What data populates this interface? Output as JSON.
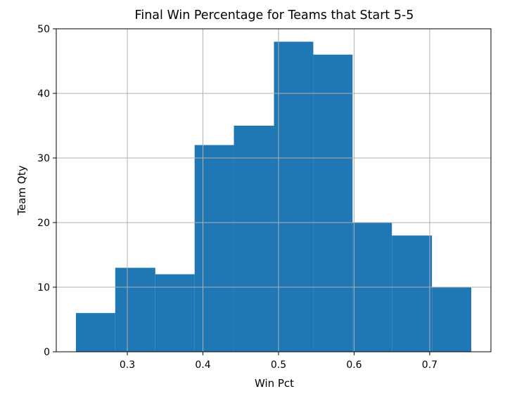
{
  "chart_data": {
    "type": "bar",
    "title": "Final Win Percentage for Teams that Start 5-5",
    "xlabel": "Win Pct",
    "ylabel": "Team Qty",
    "bins": [
      {
        "x0": 0.232,
        "x1": 0.284,
        "count": 6
      },
      {
        "x0": 0.284,
        "x1": 0.337,
        "count": 13
      },
      {
        "x0": 0.337,
        "x1": 0.389,
        "count": 12
      },
      {
        "x0": 0.389,
        "x1": 0.441,
        "count": 32
      },
      {
        "x0": 0.441,
        "x1": 0.494,
        "count": 35
      },
      {
        "x0": 0.494,
        "x1": 0.546,
        "count": 48
      },
      {
        "x0": 0.546,
        "x1": 0.598,
        "count": 46
      },
      {
        "x0": 0.598,
        "x1": 0.65,
        "count": 20
      },
      {
        "x0": 0.65,
        "x1": 0.703,
        "count": 18
      },
      {
        "x0": 0.703,
        "x1": 0.755,
        "count": 10
      }
    ],
    "xlim": [
      0.206,
      0.781
    ],
    "ylim": [
      0,
      50
    ],
    "xticks": [
      0.3,
      0.4,
      0.5,
      0.6,
      0.7
    ],
    "xtick_labels": [
      "0.3",
      "0.4",
      "0.5",
      "0.6",
      "0.7"
    ],
    "yticks": [
      0,
      10,
      20,
      30,
      40,
      50
    ],
    "ytick_labels": [
      "0",
      "10",
      "20",
      "30",
      "40",
      "50"
    ],
    "grid": true,
    "bar_color": "#1f77b4",
    "grid_color": "#b0b0b0"
  }
}
